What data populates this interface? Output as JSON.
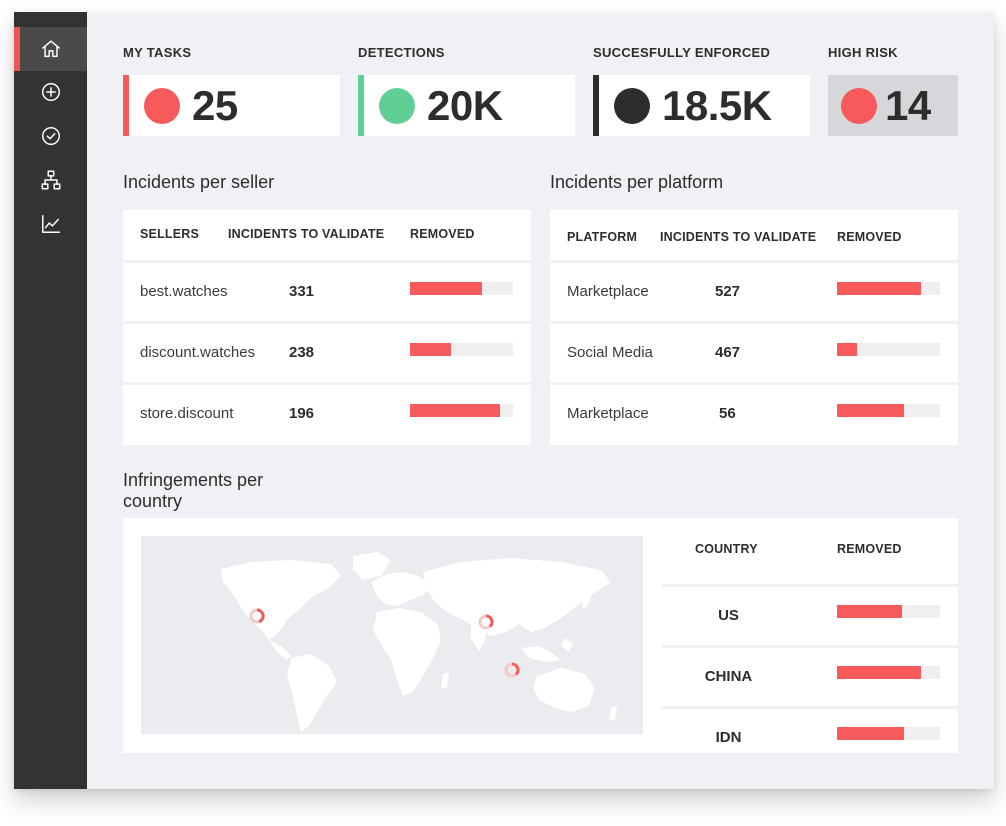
{
  "sidebar": {
    "items": [
      {
        "icon": "home-icon",
        "active": true
      },
      {
        "icon": "add-circle-icon",
        "active": false
      },
      {
        "icon": "check-circle-icon",
        "active": false
      },
      {
        "icon": "hierarchy-icon",
        "active": false
      },
      {
        "icon": "line-chart-icon",
        "active": false
      }
    ]
  },
  "stats": [
    {
      "label": "MY TASKS",
      "value": "25",
      "color": "#f65a5a",
      "edge": "#f65a5a"
    },
    {
      "label": "DETECTIONS",
      "value": "20K",
      "color": "#5fcf96",
      "edge": "#5fcf96"
    },
    {
      "label": "SUCCESFULLY ENFORCED",
      "value": "18.5K",
      "color": "#2d2d2d",
      "edge": "#2d2d2d"
    },
    {
      "label": "HIGH RISK",
      "value": "14",
      "color": "#f65a5a",
      "edge": ""
    }
  ],
  "sellers": {
    "title": "Incidents per seller",
    "headers": [
      "SELLERS",
      "INCIDENTS TO VALIDATE",
      "REMOVED"
    ],
    "rows": [
      {
        "name": "best.watches",
        "count": "331",
        "removed": 0.7
      },
      {
        "name": "discount.watches",
        "count": "238",
        "removed": 0.4
      },
      {
        "name": "store.discount",
        "count": "196",
        "removed": 0.87
      }
    ]
  },
  "platforms": {
    "title": "Incidents per platform",
    "headers": [
      "PLATFORM",
      "INCIDENTS TO VALIDATE",
      "REMOVED"
    ],
    "rows": [
      {
        "name": "Marketplace",
        "count": "527",
        "removed": 0.82
      },
      {
        "name": "Social Media",
        "count": "467",
        "removed": 0.19
      },
      {
        "name": "Marketplace",
        "count": "56",
        "removed": 0.65
      }
    ]
  },
  "countries": {
    "title_line1": "Infringements per",
    "title_line2": "country",
    "headers": [
      "COUNTRY",
      "REMOVED"
    ],
    "rows": [
      {
        "name": "US",
        "removed": 0.63
      },
      {
        "name": "CHINA",
        "removed": 0.82
      },
      {
        "name": "IDN",
        "removed": 0.65
      }
    ]
  },
  "colors": {
    "accent": "#f65a5a",
    "green": "#5fcf96",
    "sidebar": "#333333",
    "background": "#f0f1f5"
  }
}
